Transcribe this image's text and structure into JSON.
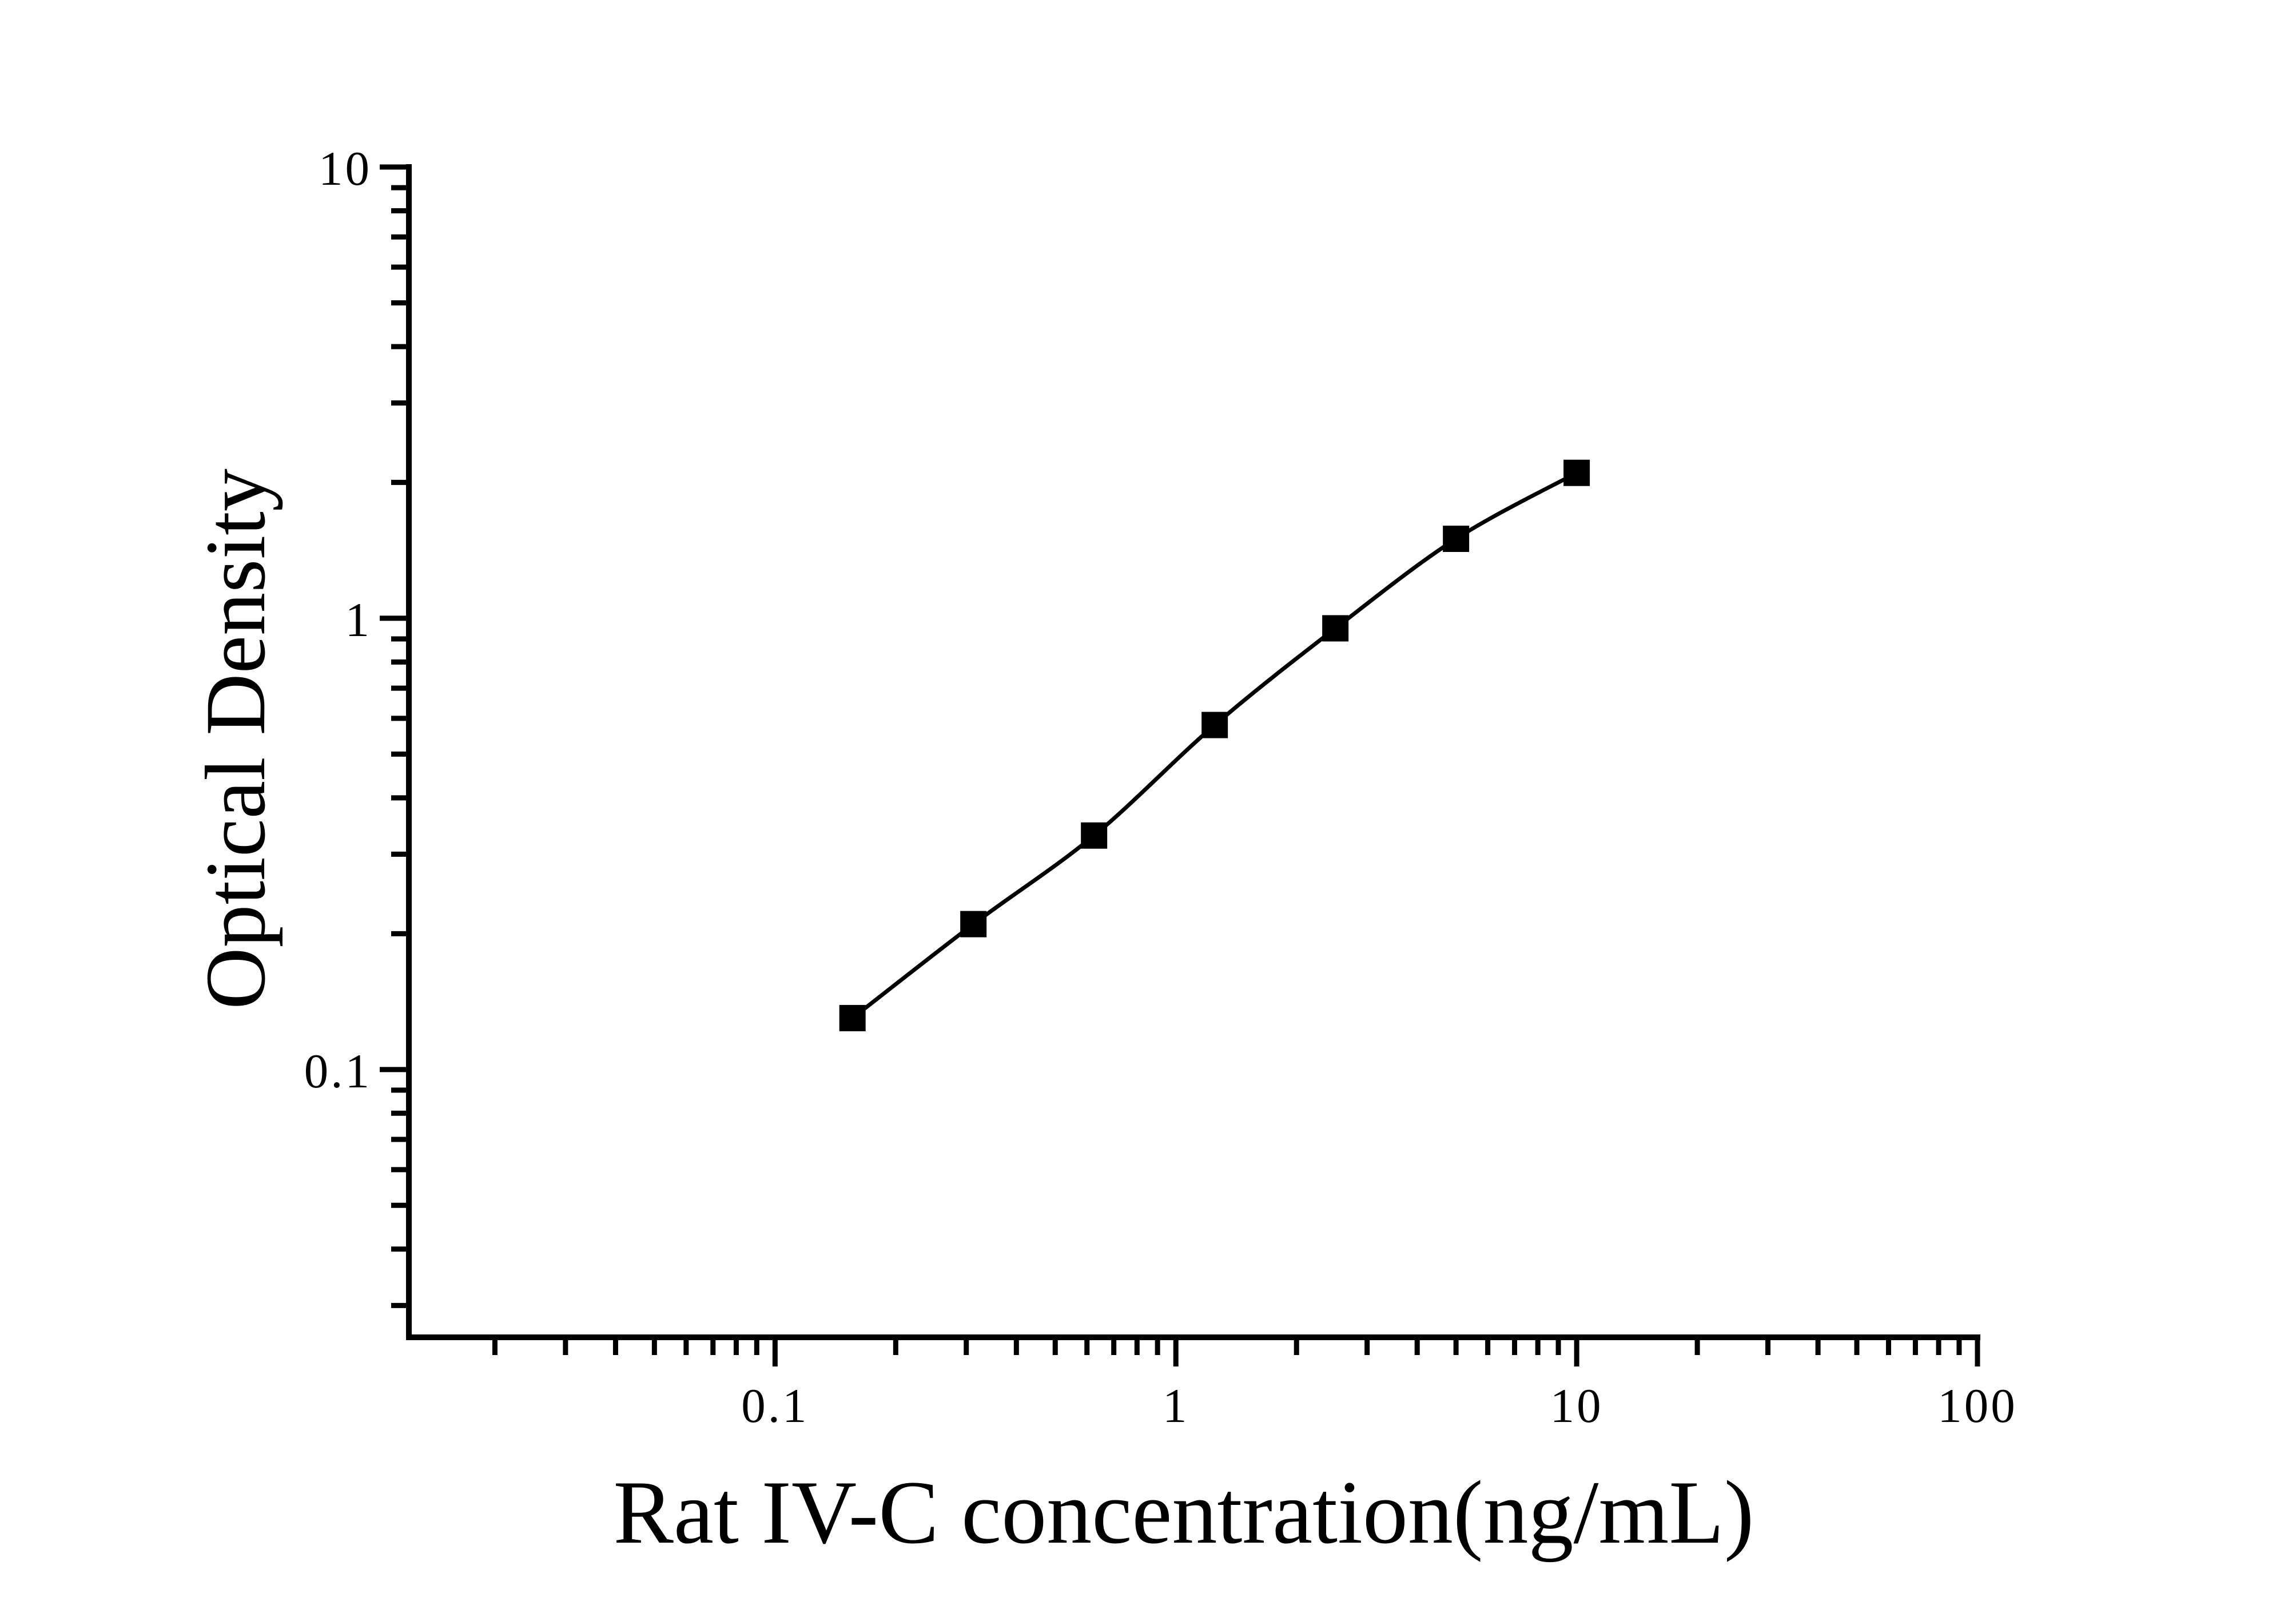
{
  "figure": {
    "background": "#ffffff",
    "ink_color": "#000000"
  },
  "chart_data": {
    "type": "line",
    "title": "",
    "xlabel": "Rat IV-C concentration(ng/mL)",
    "ylabel": "Optical Density",
    "xscale": "log",
    "yscale": "log",
    "xlim": [
      0.0122,
      100
    ],
    "ylim": [
      0.0255,
      10
    ],
    "grid": false,
    "legend": false,
    "marker": "filled-square",
    "marker_color": "#000000",
    "line_color": "#000000",
    "x": [
      0.156,
      0.3125,
      0.625,
      1.25,
      2.5,
      5,
      10
    ],
    "y": [
      0.13,
      0.21,
      0.33,
      0.58,
      0.95,
      1.5,
      2.1
    ],
    "x_major_ticks": {
      "values": [
        0.1,
        1,
        10,
        100
      ],
      "labels": [
        "0.1",
        "1",
        "10",
        "100"
      ]
    },
    "y_major_ticks": {
      "values": [
        10,
        1,
        0.1
      ],
      "labels": [
        "10",
        "1",
        "0.1"
      ]
    }
  }
}
